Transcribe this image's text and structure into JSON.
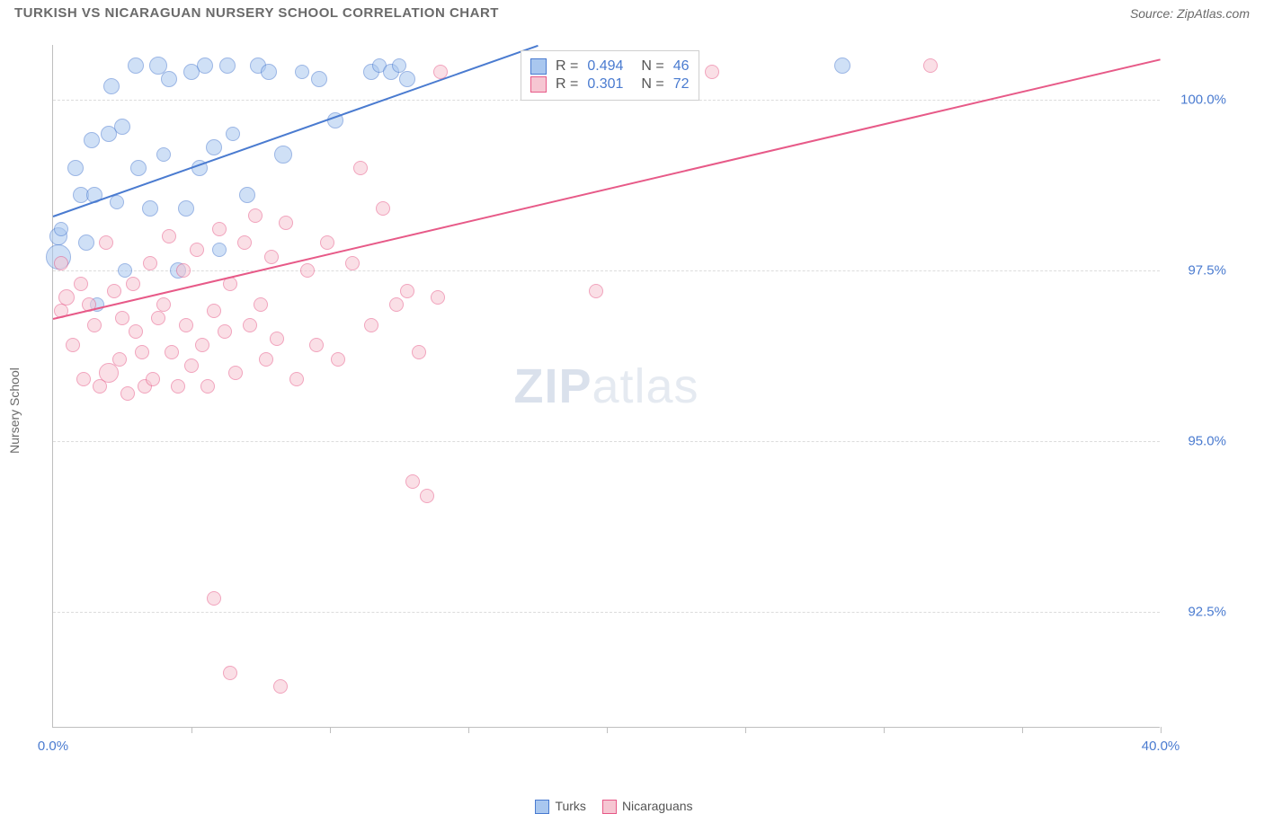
{
  "header": {
    "title": "TURKISH VS NICARAGUAN NURSERY SCHOOL CORRELATION CHART",
    "source": "Source: ZipAtlas.com"
  },
  "chart": {
    "type": "scatter",
    "ylabel": "Nursery School",
    "background_color": "#ffffff",
    "grid_color": "#dcdcdc",
    "axis_color": "#bfbfbf",
    "tick_label_color": "#4a7bd0",
    "xlim": [
      0,
      40
    ],
    "ylim": [
      90.8,
      100.8
    ],
    "xticks_minor": [
      5,
      10,
      15,
      20,
      25,
      30,
      35,
      40
    ],
    "xtick_labels": [
      {
        "v": 0,
        "label": "0.0%"
      },
      {
        "v": 40,
        "label": "40.0%"
      }
    ],
    "ytick_labels": [
      {
        "v": 92.5,
        "label": "92.5%"
      },
      {
        "v": 95.0,
        "label": "95.0%"
      },
      {
        "v": 97.5,
        "label": "97.5%"
      },
      {
        "v": 100.0,
        "label": "100.0%"
      }
    ],
    "watermark": {
      "strong": "ZIP",
      "light": "atlas"
    },
    "marker_border_opacity": 0.55,
    "series": [
      {
        "name": "Turks",
        "color_fill": "#a9c7ef",
        "color_stroke": "#4a7bd0",
        "R_label": "R =",
        "R_value": "0.494",
        "N_label": "N =",
        "N_value": "46",
        "trend": {
          "x0": 0,
          "y0": 98.3,
          "x1": 17.5,
          "y1": 100.8
        },
        "points": [
          {
            "x": 0.2,
            "y": 98.0,
            "r": 10
          },
          {
            "x": 0.2,
            "y": 97.7,
            "r": 14
          },
          {
            "x": 0.3,
            "y": 98.1,
            "r": 8
          },
          {
            "x": 0.8,
            "y": 99.0,
            "r": 9
          },
          {
            "x": 1.0,
            "y": 98.6,
            "r": 9
          },
          {
            "x": 1.2,
            "y": 97.9,
            "r": 9
          },
          {
            "x": 1.4,
            "y": 99.4,
            "r": 9
          },
          {
            "x": 1.5,
            "y": 98.6,
            "r": 9
          },
          {
            "x": 1.6,
            "y": 97.0,
            "r": 8
          },
          {
            "x": 2.0,
            "y": 99.5,
            "r": 9
          },
          {
            "x": 2.1,
            "y": 100.2,
            "r": 9
          },
          {
            "x": 2.3,
            "y": 98.5,
            "r": 8
          },
          {
            "x": 2.5,
            "y": 99.6,
            "r": 9
          },
          {
            "x": 2.6,
            "y": 97.5,
            "r": 8
          },
          {
            "x": 3.0,
            "y": 100.5,
            "r": 9
          },
          {
            "x": 3.1,
            "y": 99.0,
            "r": 9
          },
          {
            "x": 3.5,
            "y": 98.4,
            "r": 9
          },
          {
            "x": 3.8,
            "y": 100.5,
            "r": 10
          },
          {
            "x": 4.0,
            "y": 99.2,
            "r": 8
          },
          {
            "x": 4.2,
            "y": 100.3,
            "r": 9
          },
          {
            "x": 4.5,
            "y": 97.5,
            "r": 9
          },
          {
            "x": 4.8,
            "y": 98.4,
            "r": 9
          },
          {
            "x": 5.0,
            "y": 100.4,
            "r": 9
          },
          {
            "x": 5.3,
            "y": 99.0,
            "r": 9
          },
          {
            "x": 5.5,
            "y": 100.5,
            "r": 9
          },
          {
            "x": 5.8,
            "y": 99.3,
            "r": 9
          },
          {
            "x": 6.0,
            "y": 97.8,
            "r": 8
          },
          {
            "x": 6.3,
            "y": 100.5,
            "r": 9
          },
          {
            "x": 6.5,
            "y": 99.5,
            "r": 8
          },
          {
            "x": 7.0,
            "y": 98.6,
            "r": 9
          },
          {
            "x": 7.4,
            "y": 100.5,
            "r": 9
          },
          {
            "x": 7.8,
            "y": 100.4,
            "r": 9
          },
          {
            "x": 8.3,
            "y": 99.2,
            "r": 10
          },
          {
            "x": 9.0,
            "y": 100.4,
            "r": 8
          },
          {
            "x": 9.6,
            "y": 100.3,
            "r": 9
          },
          {
            "x": 10.2,
            "y": 99.7,
            "r": 9
          },
          {
            "x": 11.5,
            "y": 100.4,
            "r": 9
          },
          {
            "x": 11.8,
            "y": 100.5,
            "r": 8
          },
          {
            "x": 12.2,
            "y": 100.4,
            "r": 9
          },
          {
            "x": 12.5,
            "y": 100.5,
            "r": 8
          },
          {
            "x": 12.8,
            "y": 100.3,
            "r": 9
          },
          {
            "x": 28.5,
            "y": 100.5,
            "r": 9
          }
        ]
      },
      {
        "name": "Nicaraguans",
        "color_fill": "#f6c6d2",
        "color_stroke": "#e75a88",
        "R_label": "R =",
        "R_value": "0.301",
        "N_label": "N =",
        "N_value": "72",
        "trend": {
          "x0": 0,
          "y0": 96.8,
          "x1": 40,
          "y1": 100.6
        },
        "points": [
          {
            "x": 0.3,
            "y": 97.6,
            "r": 8
          },
          {
            "x": 0.3,
            "y": 96.9,
            "r": 8
          },
          {
            "x": 0.5,
            "y": 97.1,
            "r": 9
          },
          {
            "x": 0.7,
            "y": 96.4,
            "r": 8
          },
          {
            "x": 1.0,
            "y": 97.3,
            "r": 8
          },
          {
            "x": 1.1,
            "y": 95.9,
            "r": 8
          },
          {
            "x": 1.3,
            "y": 97.0,
            "r": 8
          },
          {
            "x": 1.5,
            "y": 96.7,
            "r": 8
          },
          {
            "x": 1.7,
            "y": 95.8,
            "r": 8
          },
          {
            "x": 1.9,
            "y": 97.9,
            "r": 8
          },
          {
            "x": 2.0,
            "y": 96.0,
            "r": 11
          },
          {
            "x": 2.2,
            "y": 97.2,
            "r": 8
          },
          {
            "x": 2.4,
            "y": 96.2,
            "r": 8
          },
          {
            "x": 2.5,
            "y": 96.8,
            "r": 8
          },
          {
            "x": 2.7,
            "y": 95.7,
            "r": 8
          },
          {
            "x": 2.9,
            "y": 97.3,
            "r": 8
          },
          {
            "x": 3.0,
            "y": 96.6,
            "r": 8
          },
          {
            "x": 3.2,
            "y": 96.3,
            "r": 8
          },
          {
            "x": 3.3,
            "y": 95.8,
            "r": 8
          },
          {
            "x": 3.5,
            "y": 97.6,
            "r": 8
          },
          {
            "x": 3.6,
            "y": 95.9,
            "r": 8
          },
          {
            "x": 3.8,
            "y": 96.8,
            "r": 8
          },
          {
            "x": 4.0,
            "y": 97.0,
            "r": 8
          },
          {
            "x": 4.2,
            "y": 98.0,
            "r": 8
          },
          {
            "x": 4.3,
            "y": 96.3,
            "r": 8
          },
          {
            "x": 4.5,
            "y": 95.8,
            "r": 8
          },
          {
            "x": 4.7,
            "y": 97.5,
            "r": 8
          },
          {
            "x": 4.8,
            "y": 96.7,
            "r": 8
          },
          {
            "x": 5.0,
            "y": 96.1,
            "r": 8
          },
          {
            "x": 5.2,
            "y": 97.8,
            "r": 8
          },
          {
            "x": 5.4,
            "y": 96.4,
            "r": 8
          },
          {
            "x": 5.6,
            "y": 95.8,
            "r": 8
          },
          {
            "x": 5.8,
            "y": 96.9,
            "r": 8
          },
          {
            "x": 5.8,
            "y": 92.7,
            "r": 8
          },
          {
            "x": 6.0,
            "y": 98.1,
            "r": 8
          },
          {
            "x": 6.2,
            "y": 96.6,
            "r": 8
          },
          {
            "x": 6.4,
            "y": 97.3,
            "r": 8
          },
          {
            "x": 6.4,
            "y": 91.6,
            "r": 8
          },
          {
            "x": 6.6,
            "y": 96.0,
            "r": 8
          },
          {
            "x": 6.9,
            "y": 97.9,
            "r": 8
          },
          {
            "x": 7.1,
            "y": 96.7,
            "r": 8
          },
          {
            "x": 7.3,
            "y": 98.3,
            "r": 8
          },
          {
            "x": 7.5,
            "y": 97.0,
            "r": 8
          },
          {
            "x": 7.7,
            "y": 96.2,
            "r": 8
          },
          {
            "x": 7.9,
            "y": 97.7,
            "r": 8
          },
          {
            "x": 8.1,
            "y": 96.5,
            "r": 8
          },
          {
            "x": 8.2,
            "y": 91.4,
            "r": 8
          },
          {
            "x": 8.4,
            "y": 98.2,
            "r": 8
          },
          {
            "x": 8.8,
            "y": 95.9,
            "r": 8
          },
          {
            "x": 9.2,
            "y": 97.5,
            "r": 8
          },
          {
            "x": 9.5,
            "y": 96.4,
            "r": 8
          },
          {
            "x": 9.9,
            "y": 97.9,
            "r": 8
          },
          {
            "x": 10.3,
            "y": 96.2,
            "r": 8
          },
          {
            "x": 10.8,
            "y": 97.6,
            "r": 8
          },
          {
            "x": 11.1,
            "y": 99.0,
            "r": 8
          },
          {
            "x": 11.5,
            "y": 96.7,
            "r": 8
          },
          {
            "x": 11.9,
            "y": 98.4,
            "r": 8
          },
          {
            "x": 12.4,
            "y": 97.0,
            "r": 8
          },
          {
            "x": 12.8,
            "y": 97.2,
            "r": 8
          },
          {
            "x": 13.0,
            "y": 94.4,
            "r": 8
          },
          {
            "x": 13.2,
            "y": 96.3,
            "r": 8
          },
          {
            "x": 13.5,
            "y": 94.2,
            "r": 8
          },
          {
            "x": 13.9,
            "y": 97.1,
            "r": 8
          },
          {
            "x": 14.0,
            "y": 100.4,
            "r": 8
          },
          {
            "x": 19.6,
            "y": 97.2,
            "r": 8
          },
          {
            "x": 23.8,
            "y": 100.4,
            "r": 8
          },
          {
            "x": 31.7,
            "y": 100.5,
            "r": 8
          }
        ]
      }
    ]
  }
}
